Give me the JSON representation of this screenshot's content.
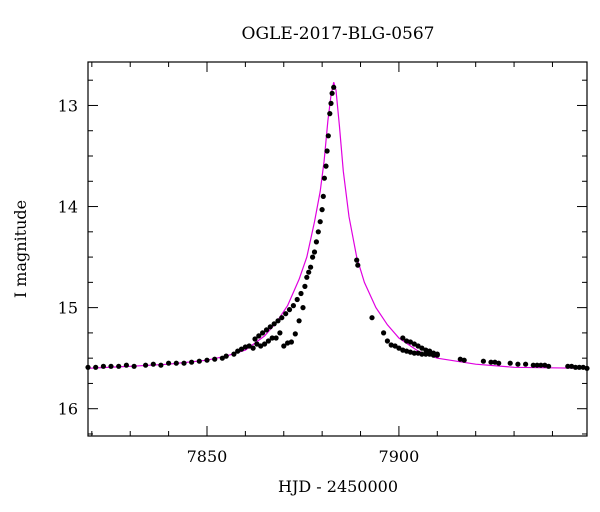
{
  "chart_data": {
    "type": "scatter",
    "title": "OGLE-2017-BLG-0567",
    "xlabel": "HJD - 2450000",
    "ylabel": "I magnitude",
    "xlim": [
      7819,
      7949
    ],
    "ylim": [
      16.27,
      12.57
    ],
    "y_inverted": true,
    "x_ticks": [
      7850,
      7900
    ],
    "y_ticks": [
      13,
      14,
      15,
      16
    ],
    "grid": false,
    "colors": {
      "data": "#000000",
      "model": "#e000e0"
    },
    "series": [
      {
        "type": "line",
        "x": [
          7819,
          7830,
          7840,
          7850,
          7855,
          7860,
          7865,
          7868,
          7871,
          7874,
          7876,
          7878,
          7879.5,
          7880.5,
          7881.5,
          7882.3,
          7883.0,
          7883.6,
          7884.5,
          7885.5,
          7887,
          7889,
          7891,
          7894,
          7897,
          7900,
          7905,
          7910,
          7920,
          7930,
          7949
        ],
        "y": [
          15.6,
          15.58,
          15.56,
          15.52,
          15.48,
          15.42,
          15.28,
          15.15,
          14.98,
          14.72,
          14.5,
          14.15,
          13.85,
          13.55,
          13.15,
          12.9,
          12.77,
          12.85,
          13.2,
          13.65,
          14.1,
          14.5,
          14.75,
          15.0,
          15.17,
          15.3,
          15.43,
          15.5,
          15.56,
          15.59,
          15.6
        ]
      },
      {
        "type": "scatter",
        "x": [
          7819,
          7821,
          7823,
          7825,
          7827,
          7829,
          7831,
          7834,
          7836,
          7838,
          7840,
          7842,
          7844,
          7846,
          7848,
          7850,
          7852,
          7854,
          7855,
          7857,
          7858,
          7859,
          7860,
          7861,
          7862,
          7862.5,
          7863,
          7863.5,
          7864,
          7864.5,
          7865,
          7865.5,
          7866,
          7866.5,
          7867,
          7867.5,
          7868,
          7868.5,
          7869,
          7869.5,
          7870,
          7870.5,
          7871,
          7871.5,
          7872,
          7872.5,
          7873,
          7873.5,
          7874,
          7874.5,
          7875,
          7875.5,
          7876,
          7876.5,
          7877,
          7877.5,
          7878,
          7878.5,
          7879,
          7879.5,
          7880,
          7880.3,
          7880.6,
          7881.0,
          7881.3,
          7881.6,
          7882.0,
          7882.3,
          7882.6,
          7883.0,
          7889,
          7889.3,
          7893,
          7896,
          7897,
          7898,
          7899,
          7900,
          7901,
          7902,
          7903,
          7904,
          7905,
          7906,
          7907,
          7908,
          7909,
          7910,
          7901,
          7902,
          7903,
          7904,
          7905,
          7906,
          7907,
          7908,
          7909,
          7910,
          7916,
          7917,
          7922,
          7924,
          7925,
          7926,
          7929,
          7931,
          7933,
          7935,
          7936,
          7937,
          7938,
          7939,
          7944,
          7945,
          7946,
          7947,
          7948,
          7949
        ],
        "y": [
          15.59,
          15.59,
          15.58,
          15.58,
          15.58,
          15.57,
          15.58,
          15.57,
          15.56,
          15.57,
          15.55,
          15.55,
          15.55,
          15.54,
          15.53,
          15.52,
          15.51,
          15.5,
          15.48,
          15.46,
          15.43,
          15.41,
          15.39,
          15.38,
          15.4,
          15.31,
          15.36,
          15.28,
          15.38,
          15.25,
          15.36,
          15.22,
          15.33,
          15.19,
          15.3,
          15.16,
          15.3,
          15.13,
          15.25,
          15.1,
          15.38,
          15.06,
          15.35,
          15.02,
          15.34,
          14.98,
          15.26,
          14.92,
          15.13,
          14.86,
          15.0,
          14.79,
          14.7,
          14.65,
          14.6,
          14.5,
          14.45,
          14.35,
          14.25,
          14.15,
          14.03,
          13.9,
          13.72,
          13.6,
          13.45,
          13.3,
          13.08,
          12.98,
          12.88,
          12.82,
          14.53,
          14.58,
          15.1,
          15.25,
          15.33,
          15.37,
          15.38,
          15.4,
          15.42,
          15.43,
          15.44,
          15.45,
          15.45,
          15.46,
          15.46,
          15.46,
          15.47,
          15.47,
          15.3,
          15.33,
          15.34,
          15.36,
          15.38,
          15.4,
          15.42,
          15.43,
          15.45,
          15.46,
          15.51,
          15.52,
          15.53,
          15.54,
          15.54,
          15.55,
          15.55,
          15.56,
          15.56,
          15.57,
          15.57,
          15.57,
          15.57,
          15.58,
          15.58,
          15.58,
          15.59,
          15.59,
          15.59,
          15.6
        ]
      }
    ]
  }
}
